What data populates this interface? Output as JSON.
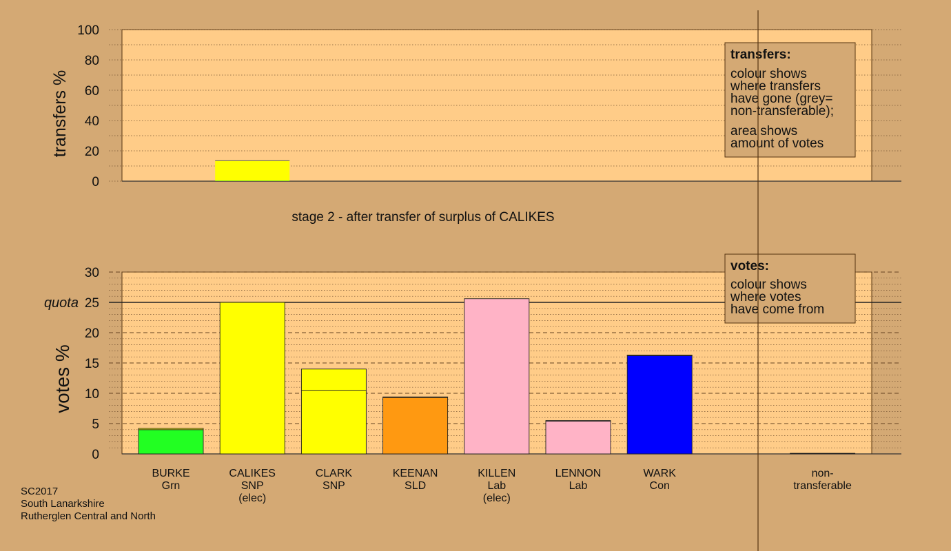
{
  "chart_data": [
    {
      "type": "bar",
      "stacked": true,
      "ylabel": "transfers %",
      "ylim": [
        0,
        100
      ],
      "yticks": [
        0,
        20,
        40,
        60,
        80,
        100
      ],
      "caption": "stage 2 - after transfer of surplus of CALIKES",
      "bars": [
        {
          "category": "CALIKES",
          "segments": [
            {
              "value": 0.3,
              "color": "#22dd22"
            },
            {
              "value": 13.2,
              "color": "#ffff00"
            }
          ]
        }
      ],
      "legend": {
        "title": "transfers:",
        "lines1": [
          "colour shows",
          "where transfers",
          "have gone (grey=",
          "non-transferable);"
        ],
        "lines2": [
          "area shows",
          "amount of votes"
        ]
      }
    },
    {
      "type": "bar",
      "stacked": true,
      "ylabel": "votes %",
      "ylim": [
        0,
        30
      ],
      "yticks": [
        0,
        5,
        10,
        15,
        20,
        25,
        30
      ],
      "quota": {
        "value": 25,
        "label": "quota"
      },
      "categories": [
        {
          "name": "BURKE",
          "party": "Grn",
          "extra": ""
        },
        {
          "name": "CALIKES",
          "party": "SNP",
          "extra": "(elec)"
        },
        {
          "name": "CLARK",
          "party": "SNP",
          "extra": ""
        },
        {
          "name": "KEENAN",
          "party": "SLD",
          "extra": ""
        },
        {
          "name": "KILLEN",
          "party": "Lab",
          "extra": "(elec)"
        },
        {
          "name": "LENNON",
          "party": "Lab",
          "extra": ""
        },
        {
          "name": "WARK",
          "party": "Con",
          "extra": ""
        },
        {
          "name": "",
          "party": "",
          "extra": ""
        },
        {
          "name": "non-",
          "party": "transferable",
          "extra": ""
        }
      ],
      "series": [
        {
          "values": [
            4.0,
            25.0,
            10.5,
            9.3,
            25.6,
            5.4,
            16.2,
            0,
            0.1
          ],
          "colors": [
            "#22ff22",
            "#ffff00",
            "#ffff00",
            "#ff9911",
            "#ffb3c6",
            "#ffb3c6",
            "#0000ff",
            "#22ff22",
            "#777777"
          ]
        },
        {
          "values": [
            0.2,
            0,
            3.5,
            0.1,
            0,
            0.1,
            0.1,
            0,
            0
          ],
          "colors": [
            "#ffff00",
            "#ffff00",
            "#ffff00",
            "#ffff00",
            "#ffff00",
            "#ffff00",
            "#ffff00",
            "#ffff00",
            "#ffff00"
          ]
        }
      ],
      "legend": {
        "title": "votes:",
        "lines1": [
          "colour shows",
          "where votes",
          "have come from"
        ]
      }
    }
  ],
  "footer": [
    "SC2017",
    "South Lanarkshire",
    "Rutherglen Central and North"
  ],
  "colors": {
    "background": "#d4a974",
    "plot": "#ffcc88"
  }
}
